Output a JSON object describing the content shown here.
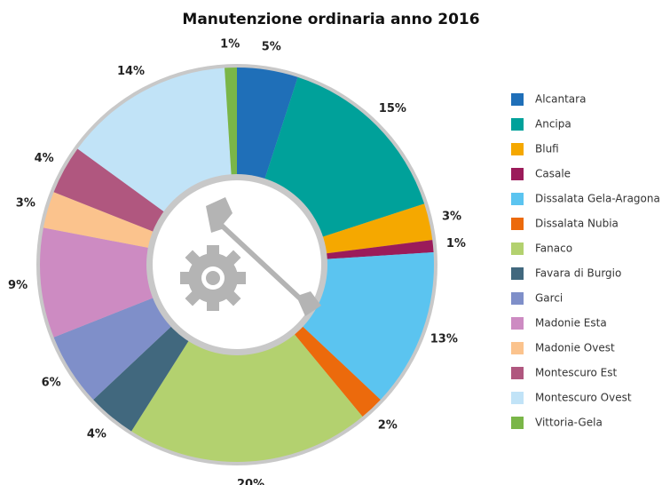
{
  "chart_data": {
    "type": "pie",
    "title": "Manutenzione ordinaria anno 2016",
    "categories": [
      "Alcantara",
      "Ancipa",
      "Blufi",
      "Casale",
      "Dissalata Gela-Aragona",
      "Dissalata Nubia",
      "Fanaco",
      "Favara di Burgio",
      "Garci",
      "Madonie Esta",
      "Madonie Ovest",
      "Montescuro Est",
      "Montescuro Ovest",
      "Vittoria-Gela"
    ],
    "values": [
      5,
      15,
      3,
      1,
      13,
      2,
      20,
      4,
      6,
      9,
      3,
      4,
      14,
      1
    ],
    "value_labels": [
      "5%",
      "15%",
      "3%",
      "1%",
      "13%",
      "2%",
      "20%",
      "4%",
      "6%",
      "9%",
      "3%",
      "4%",
      "14%",
      "1%"
    ],
    "colors": [
      "#1f6fb8",
      "#00a19a",
      "#f5a800",
      "#9b1b5a",
      "#5bc4f0",
      "#ec6a0c",
      "#b3d16f",
      "#41687e",
      "#7f8fc9",
      "#cd8bc2",
      "#fbc38d",
      "#b0577f",
      "#c1e3f7",
      "#7ab648"
    ],
    "legend": "right"
  }
}
